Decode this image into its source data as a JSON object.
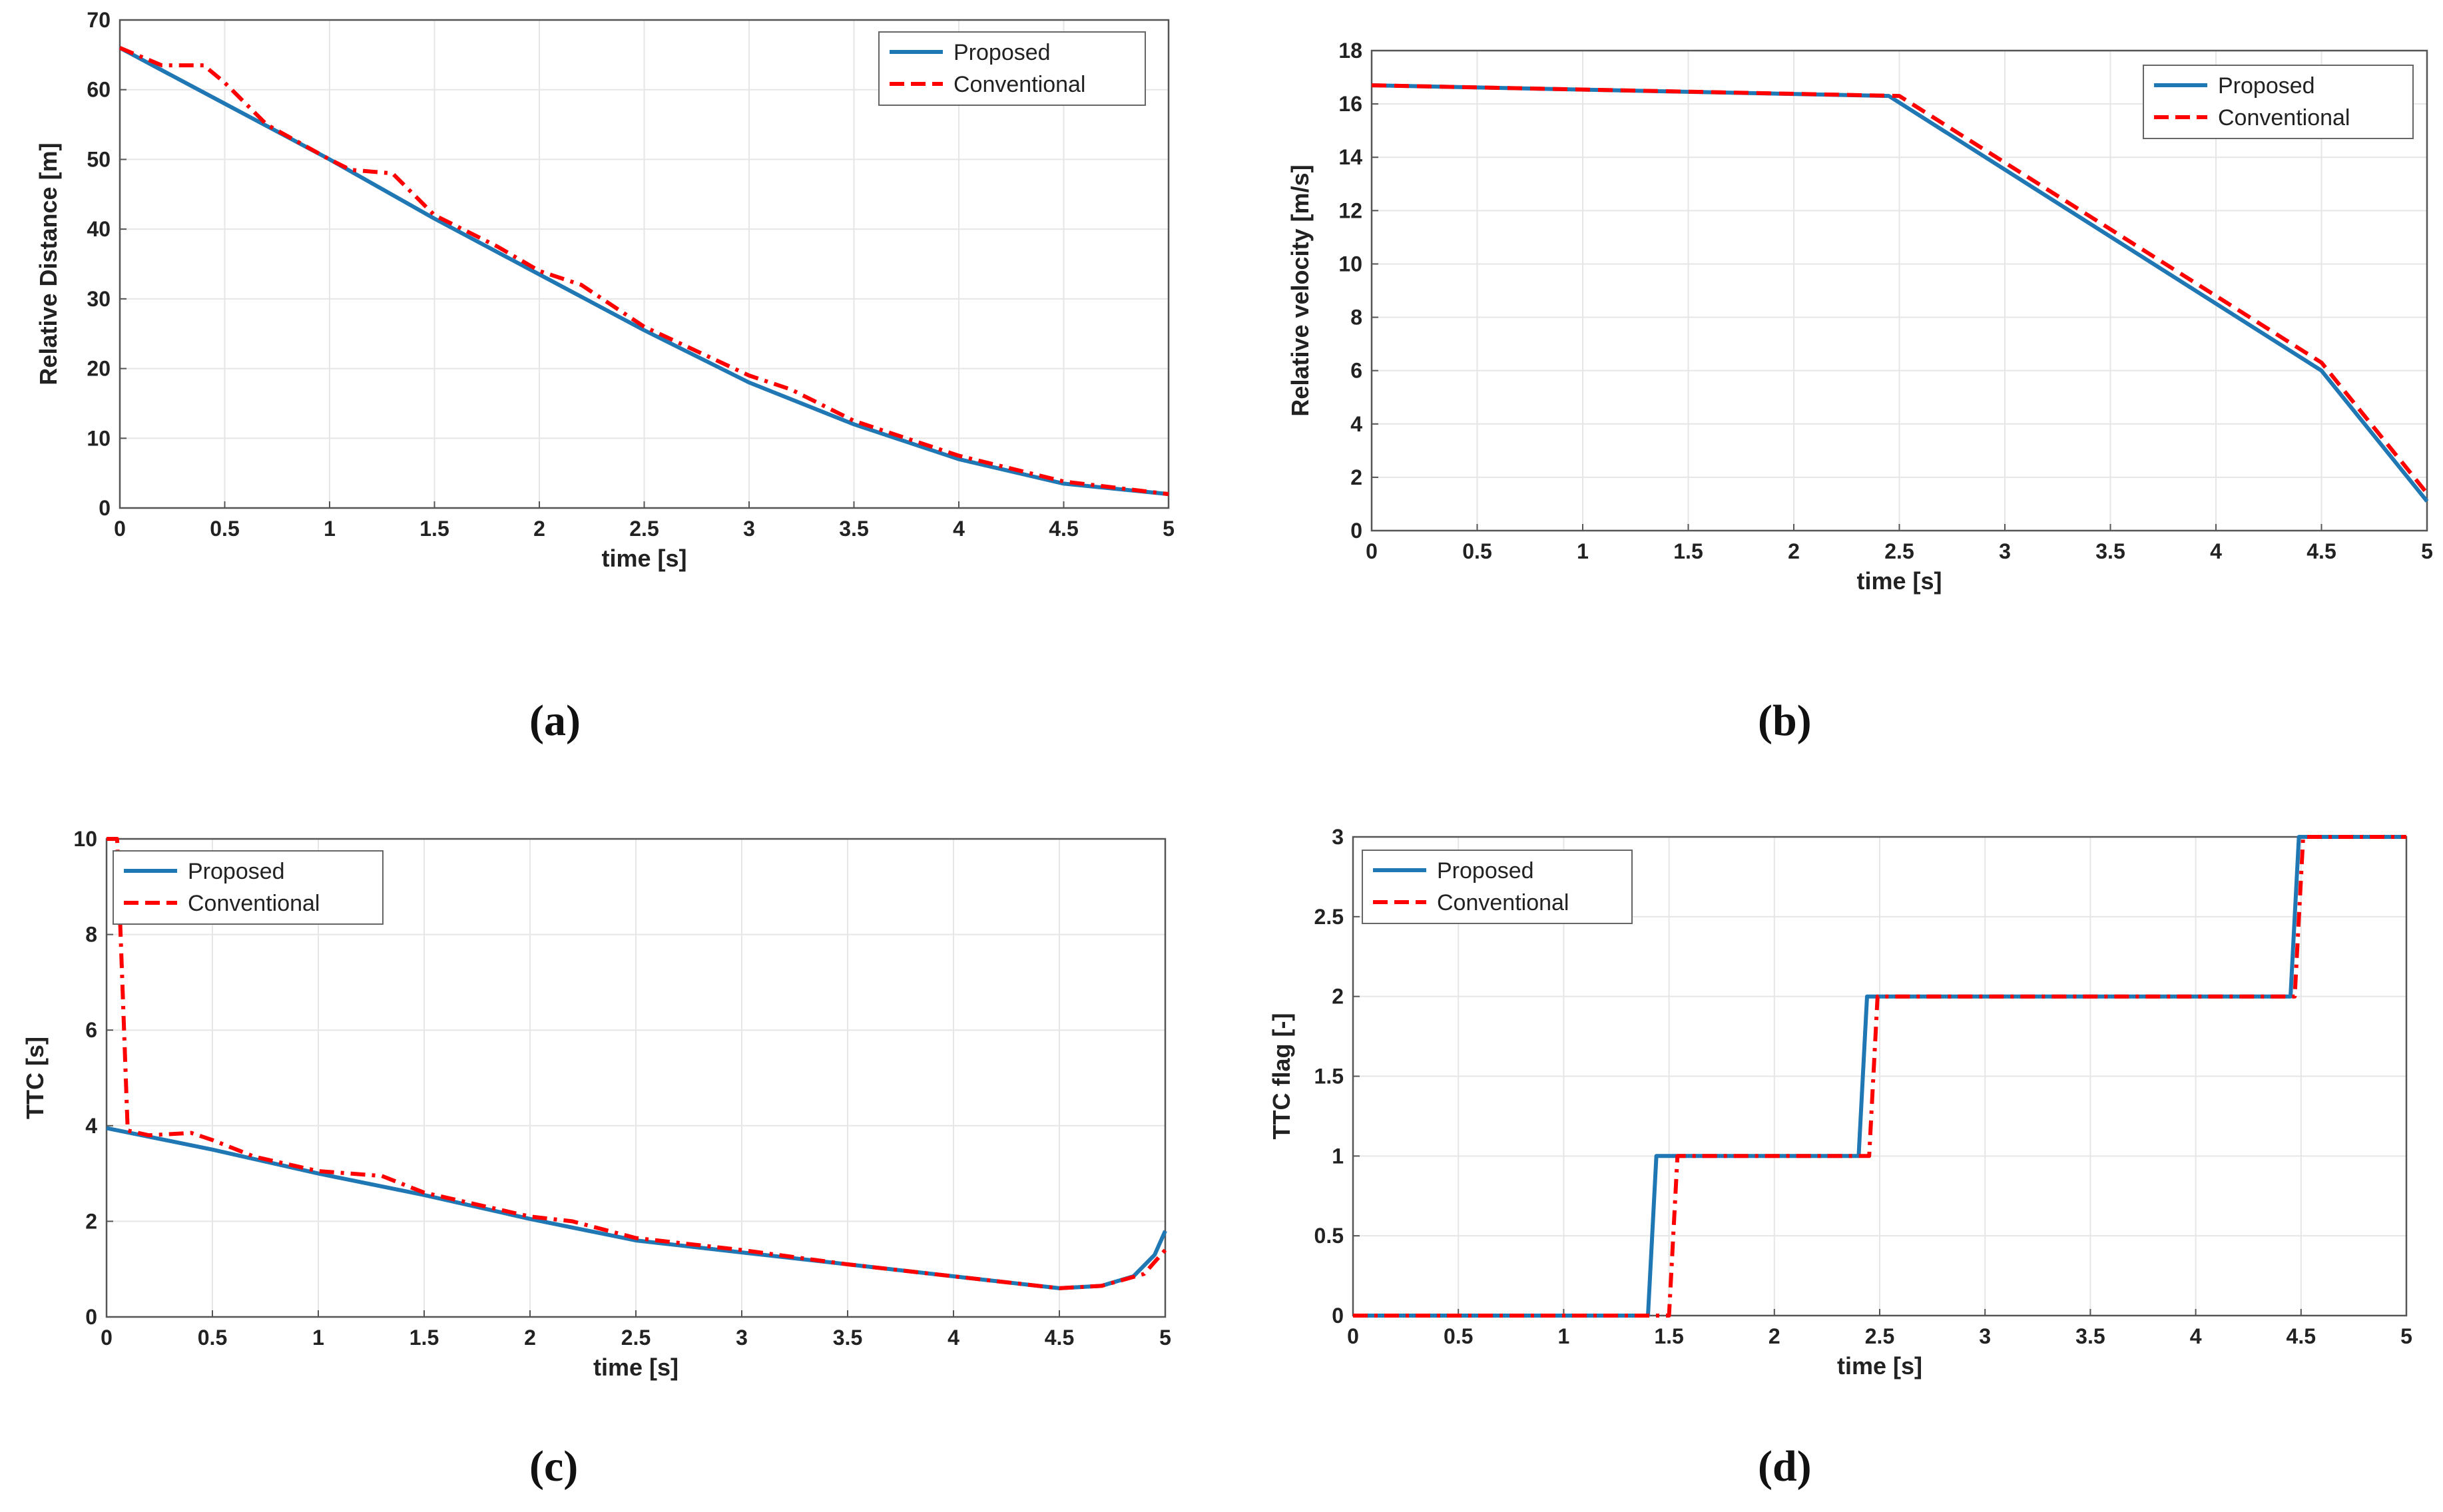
{
  "colors": {
    "proposed": "#1f77b4",
    "conventional": "#ff0000",
    "grid": "#e6e6e6",
    "axis": "#555555"
  },
  "chart_data": [
    {
      "id": "a",
      "type": "line",
      "caption": "(a)",
      "xlabel": "time [s]",
      "ylabel": "Relative Distance [m]",
      "xlim": [
        0,
        5
      ],
      "ylim": [
        0,
        70
      ],
      "xticks": [
        0,
        0.5,
        1,
        1.5,
        2,
        2.5,
        3,
        3.5,
        4,
        4.5,
        5
      ],
      "xtick_labels": [
        "0",
        "0.5",
        "1",
        "1.5",
        "2",
        "2.5",
        "3",
        "3.5",
        "4",
        "4.5",
        "5"
      ],
      "yticks": [
        0,
        10,
        20,
        30,
        40,
        50,
        60,
        70
      ],
      "ytick_labels": [
        "0",
        "10",
        "20",
        "30",
        "40",
        "50",
        "60",
        "70"
      ],
      "legend": [
        "Proposed",
        "Conventional"
      ],
      "legend_loc": "top-right",
      "series": [
        {
          "name": "Proposed",
          "style": "solid",
          "x": [
            0,
            0.5,
            1,
            1.5,
            2,
            2.5,
            3,
            3.5,
            4,
            4.5,
            5
          ],
          "y": [
            66,
            58,
            50,
            41.5,
            33.5,
            25.5,
            18,
            12,
            7,
            3.5,
            2
          ]
        },
        {
          "name": "Conventional",
          "style": "dashdot",
          "x": [
            0,
            0.2,
            0.4,
            0.5,
            0.7,
            1,
            1.1,
            1.3,
            1.5,
            1.8,
            2,
            2.2,
            2.5,
            3,
            3.2,
            3.5,
            4,
            4.5,
            5
          ],
          "y": [
            66,
            63.5,
            63.5,
            61,
            55,
            50,
            48.5,
            48,
            42,
            37.5,
            34,
            32,
            26,
            19,
            17,
            12.5,
            7.5,
            3.8,
            2
          ]
        }
      ]
    },
    {
      "id": "b",
      "type": "line",
      "caption": "(b)",
      "xlabel": "time [s]",
      "ylabel": "Relative velocity [m/s]",
      "xlim": [
        0,
        5
      ],
      "ylim": [
        0,
        18
      ],
      "xticks": [
        0,
        0.5,
        1,
        1.5,
        2,
        2.5,
        3,
        3.5,
        4,
        4.5,
        5
      ],
      "xtick_labels": [
        "0",
        "0.5",
        "1",
        "1.5",
        "2",
        "2.5",
        "3",
        "3.5",
        "4",
        "4.5",
        "5"
      ],
      "yticks": [
        0,
        2,
        4,
        6,
        8,
        10,
        12,
        14,
        16,
        18
      ],
      "ytick_labels": [
        "0",
        "2",
        "4",
        "6",
        "8",
        "10",
        "12",
        "14",
        "16",
        "18"
      ],
      "legend": [
        "Proposed",
        "Conventional"
      ],
      "legend_loc": "top-right",
      "series": [
        {
          "name": "Proposed",
          "style": "solid",
          "x": [
            0,
            2.45,
            4.5,
            5
          ],
          "y": [
            16.7,
            16.3,
            6,
            1.1
          ]
        },
        {
          "name": "Conventional",
          "style": "dashed",
          "x": [
            0,
            2.5,
            4.5,
            5
          ],
          "y": [
            16.7,
            16.3,
            6.3,
            1.4
          ]
        }
      ]
    },
    {
      "id": "c",
      "type": "line",
      "caption": "(c)",
      "xlabel": "time [s]",
      "ylabel": "TTC [s]",
      "xlim": [
        0,
        5
      ],
      "ylim": [
        0,
        10
      ],
      "xticks": [
        0,
        0.5,
        1,
        1.5,
        2,
        2.5,
        3,
        3.5,
        4,
        4.5,
        5
      ],
      "xtick_labels": [
        "0",
        "0.5",
        "1",
        "1.5",
        "2",
        "2.5",
        "3",
        "3.5",
        "4",
        "4.5",
        "5"
      ],
      "yticks": [
        0,
        2,
        4,
        6,
        8,
        10
      ],
      "ytick_labels": [
        "0",
        "2",
        "4",
        "6",
        "8",
        "10"
      ],
      "legend": [
        "Proposed",
        "Conventional"
      ],
      "legend_loc": "top-left",
      "series": [
        {
          "name": "Proposed",
          "style": "solid",
          "x": [
            0,
            0.5,
            1,
            1.5,
            2,
            2.5,
            3,
            3.5,
            4,
            4.5,
            4.7,
            4.85,
            4.95,
            5
          ],
          "y": [
            3.95,
            3.5,
            3.0,
            2.55,
            2.05,
            1.6,
            1.35,
            1.1,
            0.85,
            0.6,
            0.65,
            0.85,
            1.3,
            1.8
          ]
        },
        {
          "name": "Conventional",
          "style": "dashdot",
          "x": [
            0,
            0.05,
            0.1,
            0.2,
            0.4,
            0.5,
            0.7,
            1,
            1.3,
            1.5,
            2,
            2.2,
            2.5,
            3,
            3.5,
            4,
            4.5,
            4.7,
            4.9,
            5
          ],
          "y": [
            10,
            10,
            3.9,
            3.8,
            3.85,
            3.7,
            3.35,
            3.05,
            2.95,
            2.6,
            2.1,
            2.0,
            1.65,
            1.4,
            1.1,
            0.85,
            0.6,
            0.65,
            0.9,
            1.4
          ]
        }
      ]
    },
    {
      "id": "d",
      "type": "line",
      "caption": "(d)",
      "xlabel": "time [s]",
      "ylabel": "TTC flag [-]",
      "xlim": [
        0,
        5
      ],
      "ylim": [
        0,
        3
      ],
      "xticks": [
        0,
        0.5,
        1,
        1.5,
        2,
        2.5,
        3,
        3.5,
        4,
        4.5,
        5
      ],
      "xtick_labels": [
        "0",
        "0.5",
        "1",
        "1.5",
        "2",
        "2.5",
        "3",
        "3.5",
        "4",
        "4.5",
        "5"
      ],
      "yticks": [
        0,
        0.5,
        1,
        1.5,
        2,
        2.5,
        3
      ],
      "ytick_labels": [
        "0",
        "0.5",
        "1",
        "1.5",
        "2",
        "2.5",
        "3"
      ],
      "legend": [
        "Proposed",
        "Conventional"
      ],
      "legend_loc": "top-left",
      "series": [
        {
          "name": "Proposed",
          "style": "solid",
          "x": [
            0,
            1.4,
            1.44,
            2.4,
            2.44,
            4.45,
            4.49,
            5
          ],
          "y": [
            0,
            0,
            1,
            1,
            2,
            2,
            3,
            3
          ]
        },
        {
          "name": "Conventional",
          "style": "dashdot",
          "x": [
            0,
            1.5,
            1.54,
            2.45,
            2.49,
            4.47,
            4.51,
            5
          ],
          "y": [
            0,
            0,
            1,
            1,
            2,
            2,
            3,
            3
          ]
        }
      ]
    }
  ]
}
